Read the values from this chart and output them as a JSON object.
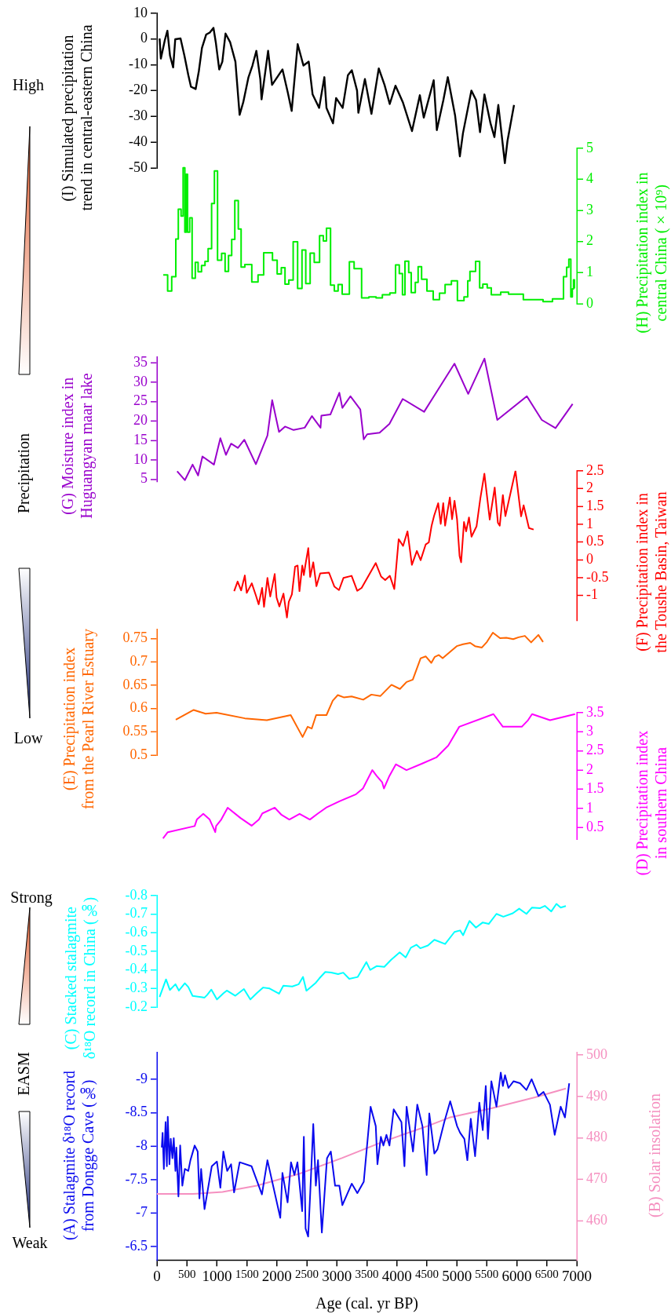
{
  "chart_data": [
    {
      "type": "line",
      "ylabel": "(I) Simulated precipitation trend in central-eastern China",
      "xlim": [
        0,
        7000
      ],
      "ylim": [
        -50,
        10
      ],
      "yticks": [
        -50,
        -40,
        -30,
        -20,
        -10,
        0,
        10
      ],
      "tick_labels": "y",
      "series": [
        {
          "color": "#000000",
          "x": [
            44,
            65,
            131,
            174,
            218,
            270,
            305,
            393,
            458,
            523,
            567,
            645,
            698,
            750,
            820,
            881,
            942,
            981,
            1038,
            1090,
            1143,
            1221,
            1308,
            1378,
            1439,
            1526,
            1592,
            1657,
            1723,
            1744,
            1853,
            1919,
            2093,
            2181,
            2246,
            2346,
            2442,
            2530,
            2595,
            2704,
            2791,
            2826,
            2935,
            2987,
            3096,
            3184,
            3249,
            3336,
            3358,
            3467,
            3576,
            3698,
            3794,
            3881,
            3977,
            4099,
            4252,
            4383,
            4448,
            4614,
            4666,
            4775,
            4849,
            4971,
            5050,
            5102,
            5242,
            5320,
            5386,
            5460,
            5561,
            5626,
            5691,
            5800,
            5844,
            5953
          ],
          "values": [
            0.2,
            -7.6,
            -0.5,
            3.2,
            -6.5,
            -11,
            -0.1,
            0.2,
            -6.5,
            -14,
            -18.5,
            -19.4,
            -12.5,
            -3.5,
            1.7,
            2.5,
            4.3,
            -1.3,
            -11.8,
            -8.8,
            2.1,
            -1.3,
            -8.8,
            -29.4,
            -24.5,
            -14.8,
            -10.3,
            -4.6,
            -15.5,
            -23.4,
            -4.6,
            -17.8,
            -11.8,
            -20.7,
            -27.9,
            -2,
            -10.3,
            -8.8,
            -21.5,
            -26.7,
            -14.8,
            -26.7,
            -32.7,
            -22.9,
            -26.7,
            -14,
            -12.1,
            -20,
            -28.6,
            -15.5,
            -29,
            -11.4,
            -17.8,
            -25.2,
            -18.1,
            -24.5,
            -35.7,
            -21.8,
            -30.5,
            -16,
            -35.3,
            -23.7,
            -14.8,
            -29.7,
            -45.5,
            -36.5,
            -20,
            -23.7,
            -36.1,
            -21.5,
            -32.7,
            -38,
            -25.6,
            -48.1,
            -39.5,
            -25.6
          ]
        }
      ]
    },
    {
      "type": "step",
      "y2label": "(H) Precipitation index in central China (×10⁹)",
      "xlim": [
        0,
        7000
      ],
      "y2lim": [
        0,
        5
      ],
      "y2ticks": [
        0,
        1,
        2,
        3,
        4,
        5
      ],
      "tick_labels": "y",
      "series": [
        {
          "color": "#00ee00",
          "axis": "y2",
          "x": [
            105,
            178,
            246,
            314,
            356,
            402,
            436,
            465,
            488,
            510,
            546,
            586,
            639,
            686,
            743,
            801,
            853,
            911,
            958,
            1010,
            1078,
            1136,
            1193,
            1246,
            1298,
            1356,
            1403,
            1465,
            1581,
            1685,
            1779,
            1926,
            2004,
            2073,
            2135,
            2198,
            2271,
            2345,
            2418,
            2481,
            2554,
            2622,
            2711,
            2774,
            2826,
            2894,
            2957,
            3020,
            3088,
            3208,
            3287,
            3412,
            3533,
            3653,
            3758,
            3883,
            3978,
            4040,
            4093,
            4135,
            4197,
            4239,
            4307,
            4354,
            4412,
            4501,
            4606,
            4710,
            4804,
            4909,
            5009,
            5119,
            5181,
            5218,
            5312,
            5380,
            5433,
            5506,
            5574,
            5731,
            5862,
            6108,
            6437,
            6594,
            6778,
            6830,
            6867,
            6900,
            6925,
            6945,
            6960
          ],
          "values": [
            0.93,
            0.41,
            0.87,
            2.08,
            3.04,
            2.82,
            4.37,
            2.3,
            4.16,
            2.3,
            2.76,
            0.82,
            1.33,
            1.03,
            1.23,
            1.36,
            1.77,
            3.22,
            4.27,
            1.4,
            1.62,
            1.04,
            1.55,
            2.07,
            3.32,
            2.4,
            1.18,
            1.26,
            0.7,
            0.93,
            1.64,
            1.4,
            0.96,
            1.16,
            0.63,
            0.76,
            1.99,
            0.49,
            1.73,
            0.65,
            1.63,
            1.33,
            2.19,
            2.02,
            2.43,
            0.6,
            0.41,
            0.62,
            0.31,
            1.35,
            1.13,
            0.19,
            0.22,
            0.19,
            0.29,
            0.35,
            1.25,
            0.97,
            0.29,
            1.37,
            1,
            0.36,
            0.69,
            1.19,
            0.79,
            0.41,
            0.13,
            0.34,
            0.62,
            0.74,
            0.1,
            0.22,
            0.74,
            1.04,
            1.36,
            0.51,
            0.63,
            0.51,
            0.29,
            0.37,
            0.31,
            0.13,
            0.07,
            0.16,
            0.87,
            1.17,
            1.43,
            0.22,
            0.48,
            0.77,
            0.49
          ]
        }
      ]
    },
    {
      "type": "line",
      "ylabel": "(G) Moisture index in Huguangyan maar lake",
      "xlim": [
        0,
        7000
      ],
      "ylim": [
        4.5,
        36.5
      ],
      "yticks": [
        5,
        10,
        15,
        20,
        25,
        30,
        35
      ],
      "tick_labels": "y",
      "series": [
        {
          "color": "#9900cc",
          "x": [
            337,
            465,
            594,
            686,
            758,
            950,
            1057,
            1150,
            1236,
            1350,
            1457,
            1649,
            1842,
            1921,
            2035,
            2135,
            2278,
            2463,
            2584,
            2727,
            2741,
            2891,
            3041,
            3091,
            3226,
            3390,
            3447,
            3505,
            3712,
            3876,
            4097,
            4454,
            4960,
            5189,
            5460,
            5674,
            6167,
            6416,
            6645,
            6930
          ],
          "values": [
            7.1,
            4.8,
            8.8,
            6,
            10.9,
            8.8,
            15.6,
            11.3,
            14.2,
            13.1,
            15.2,
            8.9,
            16.3,
            25.4,
            17.2,
            18.6,
            17.7,
            18.3,
            21.3,
            18.3,
            21.4,
            21.7,
            27.3,
            23.4,
            26.4,
            23,
            15.3,
            16.6,
            17,
            19.3,
            25.7,
            22.4,
            34.8,
            27,
            36.1,
            20.3,
            26.4,
            20.3,
            18.2,
            24.4
          ]
        }
      ]
    },
    {
      "type": "line",
      "y2label": "(F) Precipitation index in the Toushe Basin, Taiwan",
      "xlim": [
        0,
        7000
      ],
      "y2lim": [
        -1.7,
        2.5
      ],
      "y2ticks": [
        -1,
        -0.5,
        0,
        0.5,
        1,
        1.5,
        2,
        2.5
      ],
      "tick_labels": "y",
      "series": [
        {
          "color": "#ff0000",
          "axis": "y2",
          "x": [
            1287,
            1345,
            1403,
            1465,
            1497,
            1581,
            1649,
            1696,
            1753,
            1785,
            1842,
            1889,
            1963,
            1994,
            2041,
            2109,
            2167,
            2198,
            2250,
            2303,
            2345,
            2376,
            2423,
            2449,
            2481,
            2523,
            2554,
            2606,
            2659,
            2721,
            2868,
            2957,
            3035,
            3109,
            3245,
            3339,
            3412,
            3648,
            3737,
            3805,
            3883,
            3957,
            4030,
            4103,
            4177,
            4250,
            4333,
            4396,
            4480,
            4532,
            4579,
            4621,
            4689,
            4731,
            4773,
            4804,
            4883,
            4920,
            4961,
            5003,
            5045,
            5071,
            5119,
            5155,
            5202,
            5244,
            5328,
            5391,
            5459,
            5548,
            5631,
            5684,
            5715,
            5767,
            5809,
            5977,
            6071,
            6113,
            6202,
            6280
          ],
          "values": [
            -0.88,
            -0.61,
            -0.86,
            -0.44,
            -0.93,
            -0.66,
            -1,
            -1.25,
            -0.79,
            -1.32,
            -0.51,
            -1.03,
            -0.4,
            -1.06,
            -1.31,
            -0.95,
            -1.62,
            -1.18,
            -0.97,
            -0.19,
            -0.16,
            -0.88,
            -0.16,
            -0.43,
            -0.08,
            0.33,
            -0.48,
            -0.07,
            -0.74,
            -0.38,
            -0.36,
            -0.75,
            -0.85,
            -0.51,
            -0.45,
            -0.87,
            -0.79,
            -0.09,
            -0.47,
            -0.57,
            -0.45,
            -0.82,
            0.58,
            0.39,
            0.8,
            -0.14,
            0.25,
            -0.01,
            0.43,
            0.49,
            0.96,
            1.24,
            1.59,
            1.01,
            1.59,
            0.96,
            1.75,
            1.14,
            1.66,
            1.14,
            0.11,
            -0.07,
            1.06,
            0.8,
            1.19,
            0.65,
            0.94,
            1.72,
            2.42,
            1.13,
            2.03,
            1.04,
            0.96,
            1.82,
            1.23,
            2.5,
            1.22,
            1.53,
            0.89,
            0.85
          ]
        }
      ]
    },
    {
      "type": "line",
      "ylabel": "(E) Precipitation index from the Pearl River Estuary",
      "xlim": [
        0,
        7000
      ],
      "ylim": [
        0.5,
        0.77
      ],
      "yticks": [
        0.5,
        0.55,
        0.6,
        0.65,
        0.7,
        0.75
      ],
      "tick_labels": "y",
      "series": [
        {
          "color": "#ff6600",
          "x": [
            314,
            612,
            811,
            994,
            1465,
            1832,
            2230,
            2428,
            2512,
            2580,
            2654,
            2826,
            2931,
            3015,
            3114,
            3245,
            3439,
            3575,
            3726,
            3910,
            4051,
            4161,
            4265,
            4396,
            4480,
            4574,
            4632,
            4700,
            4763,
            4998,
            5103,
            5223,
            5302,
            5417,
            5501,
            5600,
            5720,
            5825,
            5940,
            6029,
            6134,
            6238,
            6359,
            6437
          ],
          "values": [
            0.576,
            0.597,
            0.589,
            0.591,
            0.579,
            0.575,
            0.586,
            0.539,
            0.561,
            0.557,
            0.586,
            0.586,
            0.617,
            0.629,
            0.624,
            0.626,
            0.619,
            0.63,
            0.627,
            0.651,
            0.642,
            0.657,
            0.662,
            0.708,
            0.712,
            0.698,
            0.711,
            0.715,
            0.708,
            0.734,
            0.738,
            0.741,
            0.734,
            0.731,
            0.743,
            0.763,
            0.751,
            0.752,
            0.749,
            0.753,
            0.756,
            0.742,
            0.758,
            0.743
          ]
        }
      ]
    },
    {
      "type": "line",
      "y2label": "(D) Precipitation index in southern China",
      "xlim": [
        0,
        7000
      ],
      "y2lim": [
        0.2,
        3.5
      ],
      "y2ticks": [
        0.5,
        1,
        1.5,
        2,
        2.5,
        3,
        3.5
      ],
      "tick_labels": "y",
      "series": [
        {
          "color": "#ff00ff",
          "axis": "y2",
          "x": [
            101,
            180,
            629,
            665,
            772,
            879,
            972,
            986,
            1072,
            1179,
            1393,
            1578,
            1700,
            1757,
            1964,
            2078,
            2207,
            2378,
            2549,
            2677,
            2820,
            3048,
            3319,
            3434,
            3591,
            3662,
            3755,
            3784,
            3876,
            3983,
            4160,
            4422,
            4658,
            4857,
            5040,
            5610,
            5767,
            6082,
            6186,
            6254,
            6553,
            6971
          ],
          "values": [
            0.22,
            0.38,
            0.54,
            0.71,
            0.86,
            0.71,
            0.38,
            0.54,
            0.71,
            1.02,
            0.75,
            0.55,
            0.71,
            0.87,
            1.02,
            0.83,
            0.71,
            0.86,
            0.71,
            0.86,
            1.02,
            1.19,
            1.37,
            1.52,
            2,
            1.85,
            1.68,
            1.52,
            1.85,
            2.15,
            2,
            2.17,
            2.33,
            2.64,
            3.13,
            3.46,
            3.13,
            3.13,
            3.3,
            3.46,
            3.3,
            3.46
          ]
        }
      ]
    },
    {
      "type": "line",
      "ylabel": "(C) Stacked stalagmite δ¹⁸O record in China (‰)",
      "xlim": [
        0,
        7000
      ],
      "ylim": [
        -0.2,
        -0.8
      ],
      "yticks": [
        -0.8,
        -0.7,
        -0.6,
        -0.5,
        -0.4,
        -0.3,
        -0.2
      ],
      "tick_labels": "y",
      "series": [
        {
          "color": "#00ffff",
          "x": [
            44,
            151,
            215,
            308,
            366,
            465,
            522,
            594,
            736,
            793,
            836,
            907,
            1000,
            1107,
            1164,
            1307,
            1450,
            1557,
            1664,
            1771,
            1878,
            2035,
            2107,
            2256,
            2364,
            2435,
            2492,
            2649,
            2706,
            2806,
            2906,
            3020,
            3106,
            3206,
            3348,
            3491,
            3555,
            3662,
            3790,
            3904,
            4047,
            4147,
            4233,
            4326,
            4390,
            4518,
            4625,
            4804,
            4961,
            5054,
            5104,
            5211,
            5318,
            5432,
            5532,
            5660,
            5775,
            5932,
            6039,
            6160,
            6253,
            6389,
            6467,
            6574,
            6660,
            6731,
            6817
          ],
          "values": [
            -0.254,
            -0.349,
            -0.292,
            -0.323,
            -0.289,
            -0.328,
            -0.308,
            -0.26,
            -0.254,
            -0.251,
            -0.265,
            -0.294,
            -0.241,
            -0.274,
            -0.289,
            -0.261,
            -0.297,
            -0.241,
            -0.275,
            -0.305,
            -0.3,
            -0.272,
            -0.315,
            -0.311,
            -0.323,
            -0.362,
            -0.288,
            -0.331,
            -0.354,
            -0.389,
            -0.386,
            -0.377,
            -0.385,
            -0.352,
            -0.362,
            -0.442,
            -0.4,
            -0.42,
            -0.416,
            -0.454,
            -0.494,
            -0.467,
            -0.519,
            -0.535,
            -0.516,
            -0.531,
            -0.562,
            -0.539,
            -0.604,
            -0.612,
            -0.586,
            -0.663,
            -0.627,
            -0.655,
            -0.647,
            -0.701,
            -0.686,
            -0.704,
            -0.729,
            -0.701,
            -0.735,
            -0.732,
            -0.744,
            -0.714,
            -0.755,
            -0.735,
            -0.743
          ]
        }
      ]
    },
    {
      "type": "line",
      "xlabel": "Age (cal. yr BP)",
      "ylabel": "(A) Stalagmite δ¹⁸O record from Dongge Cave (‰)",
      "y2label": "(B) Solar insolation",
      "xlim": [
        0,
        7000
      ],
      "xticks": [
        0,
        500,
        1000,
        1500,
        2000,
        2500,
        3000,
        3500,
        4000,
        4500,
        5000,
        5500,
        6000,
        6500,
        7000
      ],
      "ylim": [
        -6.3,
        -9.4
      ],
      "yticks": [
        -9,
        -8.5,
        -8,
        -7.5,
        -7,
        -6.5
      ],
      "y2lim": [
        450.6,
        500.6
      ],
      "y2ticks": [
        460,
        470,
        480,
        490,
        500
      ],
      "series": [
        {
          "color": "#0a0aee",
          "x": [
            80,
            94,
            115,
            144,
            165,
            180,
            208,
            230,
            258,
            280,
            308,
            323,
            358,
            387,
            423,
            465,
            522,
            558,
            629,
            679,
            708,
            736,
            793,
            914,
            1000,
            1057,
            1107,
            1171,
            1236,
            1286,
            1379,
            1578,
            1750,
            1842,
            2056,
            2092,
            2178,
            2235,
            2292,
            2342,
            2421,
            2449,
            2478,
            2521,
            2556,
            2606,
            2649,
            2685,
            2749,
            2835,
            2899,
            2970,
            3041,
            3091,
            3248,
            3341,
            3448,
            3562,
            3648,
            3676,
            3733,
            3776,
            3826,
            3876,
            3947,
            4076,
            4126,
            4162,
            4269,
            4340,
            4426,
            4497,
            4540,
            4625,
            4675,
            4790,
            4889,
            5004,
            5054,
            5125,
            5175,
            5232,
            5304,
            5375,
            5432,
            5482,
            5518,
            5575,
            5660,
            5732,
            5767,
            5803,
            5860,
            5946,
            6053,
            6160,
            6246,
            6360,
            6445,
            6552,
            6631,
            6731,
            6802,
            6873
          ],
          "values": [
            -7.98,
            -8.2,
            -7.66,
            -8.36,
            -7.7,
            -8.44,
            -7.73,
            -8.11,
            -7.82,
            -8.12,
            -7.63,
            -7.98,
            -7.25,
            -8.01,
            -7.41,
            -7.66,
            -7.63,
            -7.79,
            -8.01,
            -7.92,
            -7.22,
            -7.66,
            -7.06,
            -7.7,
            -7.77,
            -7.38,
            -7.92,
            -7.63,
            -7.73,
            -7.31,
            -7.76,
            -7.7,
            -7.28,
            -7.79,
            -6.93,
            -7.6,
            -7.16,
            -7.76,
            -7.57,
            -7.76,
            -7.03,
            -8.14,
            -6.77,
            -6.65,
            -7.31,
            -8.33,
            -7.41,
            -7.79,
            -6.71,
            -7.82,
            -7.92,
            -7.41,
            -7.41,
            -7.12,
            -7.44,
            -7.3,
            -7.47,
            -8.59,
            -8.3,
            -7.73,
            -8.14,
            -8.01,
            -8.17,
            -8.01,
            -8.55,
            -8.36,
            -7.7,
            -8.59,
            -7.92,
            -8.62,
            -8.3,
            -7.57,
            -8.49,
            -7.89,
            -7.95,
            -8.36,
            -8.67,
            -8.3,
            -8.2,
            -8.11,
            -7.79,
            -8.41,
            -7.85,
            -8.65,
            -8.24,
            -8.9,
            -8.11,
            -8.97,
            -8.59,
            -9.1,
            -8.9,
            -9.06,
            -8.87,
            -8.97,
            -8.94,
            -8.84,
            -9,
            -8.75,
            -8.81,
            -8.62,
            -8.17,
            -8.59,
            -8.43,
            -8.94
          ]
        },
        {
          "color": "#f590c0",
          "axis": "y2",
          "x": [
            0,
            594,
            1093,
            1664,
            2378,
            3091,
            3805,
            4518,
            4874,
            5588,
            6301,
            6817
          ],
          "values": [
            466.5,
            466.5,
            467,
            468.5,
            471.4,
            475.2,
            479.3,
            482.9,
            484.9,
            487.2,
            489.8,
            491.9
          ]
        }
      ]
    },
    {
      "type": "other",
      "annotations": [
        "High",
        "Precipitation",
        "Low",
        "Strong",
        "EASM",
        "Weak"
      ]
    }
  ]
}
